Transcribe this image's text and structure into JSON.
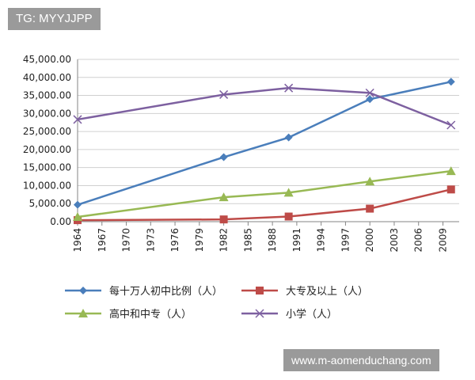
{
  "watermark_top": "TG: MYYJJPP",
  "watermark_bottom": "www.m-aomenduchang.com",
  "chart_data": {
    "type": "line",
    "title": "",
    "xlabel": "",
    "ylabel": "",
    "ylim": [
      0,
      45000
    ],
    "xlim": [
      1964,
      2011
    ],
    "grid": true,
    "legend_position": "bottom",
    "x_ticks": [
      "1964",
      "1967",
      "1970",
      "1973",
      "1976",
      "1979",
      "1982",
      "1985",
      "1988",
      "1991",
      "1994",
      "1997",
      "2000",
      "2003",
      "2006",
      "2009"
    ],
    "y_ticks": [
      "0.00",
      "5,000.00",
      "10,000.00",
      "15,000.00",
      "20,000.00",
      "25,000.00",
      "30,000.00",
      "35,000.00",
      "40,000.00",
      "45,000.00"
    ],
    "y_tick_values": [
      0,
      5000,
      10000,
      15000,
      20000,
      25000,
      30000,
      35000,
      40000,
      45000
    ],
    "series": [
      {
        "name": "每十万人初中比例（人）",
        "color": "#4a7ebb",
        "marker": "diamond",
        "x": [
          1964,
          1982,
          1990,
          2000,
          2010
        ],
        "values": [
          4680,
          17890,
          23340,
          33960,
          38790
        ]
      },
      {
        "name": "大专及以上（人）",
        "color": "#be4b48",
        "marker": "square",
        "x": [
          1964,
          1982,
          1990,
          2000,
          2010
        ],
        "values": [
          420,
          620,
          1420,
          3610,
          8930
        ]
      },
      {
        "name": "高中和中专（人）",
        "color": "#98b954",
        "marker": "triangle",
        "x": [
          1964,
          1982,
          1990,
          2000,
          2010
        ],
        "values": [
          1320,
          6780,
          8040,
          11150,
          14030
        ]
      },
      {
        "name": "小学（人）",
        "color": "#7d60a0",
        "marker": "cross",
        "x": [
          1964,
          1982,
          1990,
          2000,
          2010
        ],
        "values": [
          28330,
          35240,
          37060,
          35700,
          26780
        ]
      }
    ]
  }
}
